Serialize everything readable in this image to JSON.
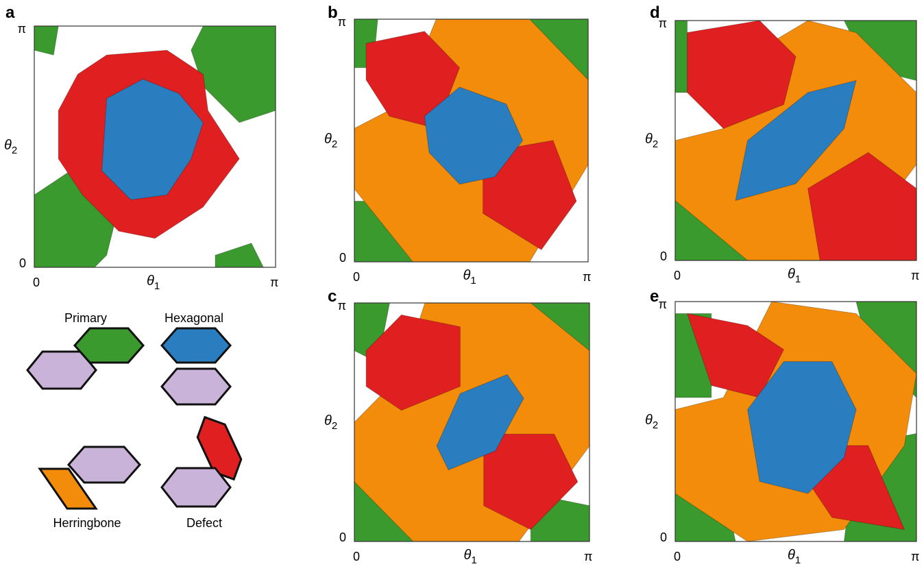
{
  "panels": [
    {
      "label": "a",
      "x_axis": {
        "symbol": "θ",
        "subscript": "1",
        "ticks": [
          "0",
          "π"
        ]
      },
      "y_axis": {
        "symbol": "θ",
        "subscript": "2",
        "ticks": [
          "0",
          "π"
        ]
      }
    },
    {
      "label": "b",
      "x_axis": {
        "symbol": "θ",
        "subscript": "1",
        "ticks": [
          "0",
          "π"
        ]
      },
      "y_axis": {
        "symbol": "θ",
        "subscript": "2",
        "ticks": [
          "0",
          "π"
        ]
      }
    },
    {
      "label": "c",
      "x_axis": {
        "symbol": "θ",
        "subscript": "1",
        "ticks": [
          "0",
          "π"
        ]
      },
      "y_axis": {
        "symbol": "θ",
        "subscript": "2",
        "ticks": [
          "0",
          "π"
        ]
      }
    },
    {
      "label": "d",
      "x_axis": {
        "symbol": "θ",
        "subscript": "1",
        "ticks": [
          "0",
          "π"
        ]
      },
      "y_axis": {
        "symbol": "θ",
        "subscript": "2",
        "ticks": [
          "0",
          "π"
        ]
      }
    },
    {
      "label": "e",
      "x_axis": {
        "symbol": "θ",
        "subscript": "1",
        "ticks": [
          "0",
          "π"
        ]
      },
      "y_axis": {
        "symbol": "θ",
        "subscript": "2",
        "ticks": [
          "0",
          "π"
        ]
      }
    }
  ],
  "legend": {
    "items": [
      {
        "label": "Primary"
      },
      {
        "label": "Hexagonal"
      },
      {
        "label": "Herringbone"
      },
      {
        "label": "Defect"
      }
    ]
  }
}
